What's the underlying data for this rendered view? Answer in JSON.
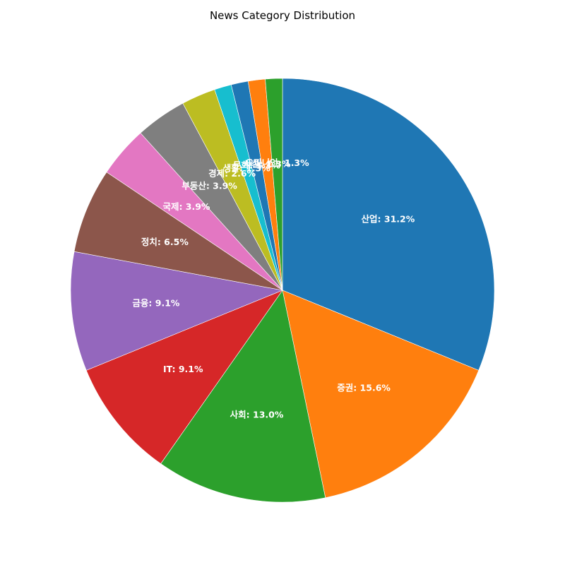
{
  "chart_data": {
    "type": "pie",
    "title": "News Category Distribution",
    "start_angle_deg": 90,
    "direction": "clockwise",
    "slices": [
      {
        "label": "산업",
        "value": 31.2,
        "display": "산업: 31.2%",
        "color": "#1f77b4"
      },
      {
        "label": "증권",
        "value": 15.6,
        "display": "증권: 15.6%",
        "color": "#ff7f0e"
      },
      {
        "label": "사회",
        "value": 13.0,
        "display": "사회: 13.0%",
        "color": "#2ca02c"
      },
      {
        "label": "IT",
        "value": 9.1,
        "display": "IT: 9.1%",
        "color": "#d62728"
      },
      {
        "label": "금융",
        "value": 9.1,
        "display": "금융: 9.1%",
        "color": "#9467bd"
      },
      {
        "label": "정치",
        "value": 6.5,
        "display": "정치: 6.5%",
        "color": "#8c564b"
      },
      {
        "label": "국제",
        "value": 3.9,
        "display": "국제: 3.9%",
        "color": "#e377c2"
      },
      {
        "label": "부동산",
        "value": 3.9,
        "display": "부동산: 3.9%",
        "color": "#7f7f7f"
      },
      {
        "label": "경제",
        "value": 2.6,
        "display": "경제: 2.6%",
        "color": "#bcbd22"
      },
      {
        "label": "생활",
        "value": 1.3,
        "display": "생활: 1.3%",
        "color": "#17becf"
      },
      {
        "label": "문화",
        "value": 1.3,
        "display": "문화: 1.3%",
        "color": "#1f77b4"
      },
      {
        "label": "사설",
        "value": 1.3,
        "display": "사설: 1.3%",
        "color": "#ff7f0e"
      },
      {
        "label": "오피니언",
        "value": 1.3,
        "display": "오피니언: 1.3%",
        "color": "#2ca02c"
      }
    ]
  }
}
